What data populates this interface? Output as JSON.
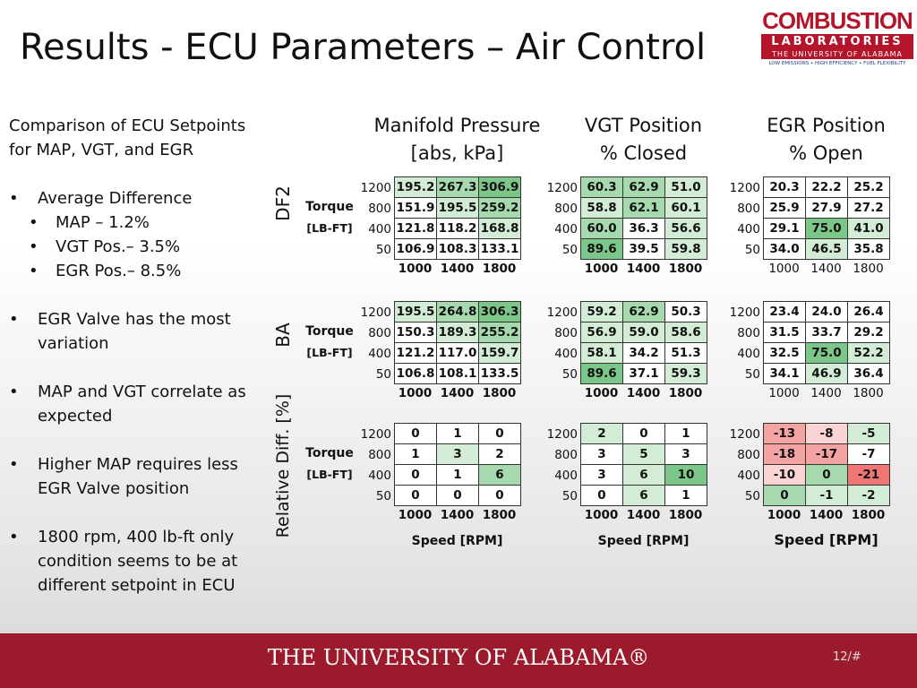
{
  "title": "Results - ECU Parameters – Air Control",
  "logo": {
    "line1": "COMBUSTION",
    "line2": "LABORATORIES",
    "line3": "THE UNIVERSITY OF ALABAMA",
    "line4": "LOW EMISSIONS • HIGH EFFICIENCY • FUEL FLEXIBILITY"
  },
  "intro": "Comparison of ECU Setpoints for MAP, VGT, and EGR",
  "bullets": [
    {
      "text": "Average Difference",
      "sub": [
        "MAP – 1.2%",
        "VGT Pos.–  3.5%",
        "EGR Pos.– 8.5%"
      ]
    },
    {
      "text": "EGR Valve has the most variation",
      "sub": []
    },
    {
      "text": "MAP and VGT correlate as expected",
      "sub": []
    },
    {
      "text": "Higher MAP requires less EGR Valve position",
      "sub": []
    },
    {
      "text": "1800 rpm, 400 lb-ft only condition seems to be at different setpoint in ECU",
      "sub": []
    }
  ],
  "params": [
    {
      "name": "Manifold Pressure",
      "unit": "[abs, kPa]"
    },
    {
      "name": "VGT Position",
      "unit": "% Closed"
    },
    {
      "name": "EGR Position",
      "unit": "% Open"
    }
  ],
  "torque": {
    "label": "Torque",
    "unit": "[LB-FT]"
  },
  "torque_levels": [
    "1200",
    "800",
    "400",
    "50"
  ],
  "speeds": [
    "1000",
    "1400",
    "1800"
  ],
  "speed_label": "Speed [RPM]",
  "groups": [
    {
      "name": "DF2",
      "tables": [
        {
          "cells": [
            [
              "195.2",
              "267.3",
              "306.9"
            ],
            [
              "151.9",
              "195.5",
              "259.2"
            ],
            [
              "121.8",
              "118.2",
              "168.8"
            ],
            [
              "106.9",
              "108.3",
              "133.1"
            ]
          ],
          "shades": [
            [
              "#d3ecd6",
              "#a6d9ae",
              "#7cc68a"
            ],
            [
              "#ffffff",
              "#d3ecd6",
              "#a6d9ae"
            ],
            [
              "#ffffff",
              "#ffffff",
              "#d3ecd6"
            ],
            [
              "#ffffff",
              "#ffffff",
              "#ffffff"
            ]
          ]
        },
        {
          "cells": [
            [
              "60.3",
              "62.9",
              "51.0"
            ],
            [
              "58.8",
              "62.1",
              "60.1"
            ],
            [
              "60.0",
              "36.3",
              "56.6"
            ],
            [
              "89.6",
              "39.5",
              "59.8"
            ]
          ],
          "shades": [
            [
              "#a6d9ae",
              "#a6d9ae",
              "#d3ecd6"
            ],
            [
              "#d3ecd6",
              "#a6d9ae",
              "#d3ecd6"
            ],
            [
              "#a6d9ae",
              "#ffffff",
              "#d3ecd6"
            ],
            [
              "#7cc68a",
              "#ffffff",
              "#d3ecd6"
            ]
          ]
        },
        {
          "cells": [
            [
              "20.3",
              "22.2",
              "25.2"
            ],
            [
              "25.9",
              "27.9",
              "27.2"
            ],
            [
              "29.1",
              "75.0",
              "41.0"
            ],
            [
              "34.0",
              "46.5",
              "35.8"
            ]
          ],
          "shades": [
            [
              "#ffffff",
              "#ffffff",
              "#ffffff"
            ],
            [
              "#ffffff",
              "#ffffff",
              "#ffffff"
            ],
            [
              "#ffffff",
              "#7cc68a",
              "#d3ecd6"
            ],
            [
              "#ffffff",
              "#d3ecd6",
              "#ffffff"
            ]
          ]
        }
      ]
    },
    {
      "name": "BA",
      "tables": [
        {
          "cells": [
            [
              "195.5",
              "264.8",
              "306.3"
            ],
            [
              "150.3",
              "189.3",
              "255.2"
            ],
            [
              "121.2",
              "117.0",
              "159.7"
            ],
            [
              "106.8",
              "108.1",
              "133.5"
            ]
          ],
          "shades": [
            [
              "#d3ecd6",
              "#a6d9ae",
              "#7cc68a"
            ],
            [
              "#ffffff",
              "#d3ecd6",
              "#a6d9ae"
            ],
            [
              "#ffffff",
              "#ffffff",
              "#d3ecd6"
            ],
            [
              "#ffffff",
              "#ffffff",
              "#ffffff"
            ]
          ]
        },
        {
          "cells": [
            [
              "59.2",
              "62.9",
              "50.3"
            ],
            [
              "56.9",
              "59.0",
              "58.6"
            ],
            [
              "58.1",
              "34.2",
              "51.3"
            ],
            [
              "89.6",
              "37.1",
              "59.3"
            ]
          ],
          "shades": [
            [
              "#d3ecd6",
              "#a6d9ae",
              "#ffffff"
            ],
            [
              "#d3ecd6",
              "#d3ecd6",
              "#d3ecd6"
            ],
            [
              "#d3ecd6",
              "#ffffff",
              "#ffffff"
            ],
            [
              "#7cc68a",
              "#ffffff",
              "#d3ecd6"
            ]
          ]
        },
        {
          "cells": [
            [
              "23.4",
              "24.0",
              "26.4"
            ],
            [
              "31.5",
              "33.7",
              "29.2"
            ],
            [
              "32.5",
              "75.0",
              "52.2"
            ],
            [
              "34.1",
              "46.9",
              "36.4"
            ]
          ],
          "shades": [
            [
              "#ffffff",
              "#ffffff",
              "#ffffff"
            ],
            [
              "#ffffff",
              "#ffffff",
              "#ffffff"
            ],
            [
              "#ffffff",
              "#7cc68a",
              "#d3ecd6"
            ],
            [
              "#ffffff",
              "#d3ecd6",
              "#ffffff"
            ]
          ]
        }
      ]
    },
    {
      "name": "Relative Diff. [%]",
      "tables": [
        {
          "cells": [
            [
              "0",
              "1",
              "0"
            ],
            [
              "1",
              "3",
              "2"
            ],
            [
              "0",
              "1",
              "6"
            ],
            [
              "0",
              "0",
              "0"
            ]
          ],
          "shades": [
            [
              "#ffffff",
              "#ffffff",
              "#ffffff"
            ],
            [
              "#ffffff",
              "#d3ecd6",
              "#ffffff"
            ],
            [
              "#ffffff",
              "#ffffff",
              "#a6d9ae"
            ],
            [
              "#ffffff",
              "#ffffff",
              "#ffffff"
            ]
          ]
        },
        {
          "cells": [
            [
              "2",
              "0",
              "1"
            ],
            [
              "3",
              "5",
              "3"
            ],
            [
              "3",
              "6",
              "10"
            ],
            [
              "0",
              "6",
              "1"
            ]
          ],
          "shades": [
            [
              "#d3ecd6",
              "#ffffff",
              "#ffffff"
            ],
            [
              "#ffffff",
              "#d3ecd6",
              "#ffffff"
            ],
            [
              "#ffffff",
              "#d3ecd6",
              "#7cc68a"
            ],
            [
              "#ffffff",
              "#d3ecd6",
              "#ffffff"
            ]
          ]
        },
        {
          "cells": [
            [
              "-13",
              "-8",
              "-5"
            ],
            [
              "-18",
              "-17",
              "-7"
            ],
            [
              "-10",
              "0",
              "-21"
            ],
            [
              "0",
              "-1",
              "-2"
            ]
          ],
          "shades": [
            [
              "#f4a3a3",
              "#fad4d4",
              "#d3ecd6"
            ],
            [
              "#f4a3a3",
              "#f4a3a3",
              "#ffffff"
            ],
            [
              "#fad4d4",
              "#a6d9ae",
              "#f07575"
            ],
            [
              "#a6d9ae",
              "#d3ecd6",
              "#d3ecd6"
            ]
          ]
        }
      ]
    }
  ],
  "footer": {
    "university": "THE UNIVERSITY OF ALABAMA®",
    "page": "12/#"
  }
}
